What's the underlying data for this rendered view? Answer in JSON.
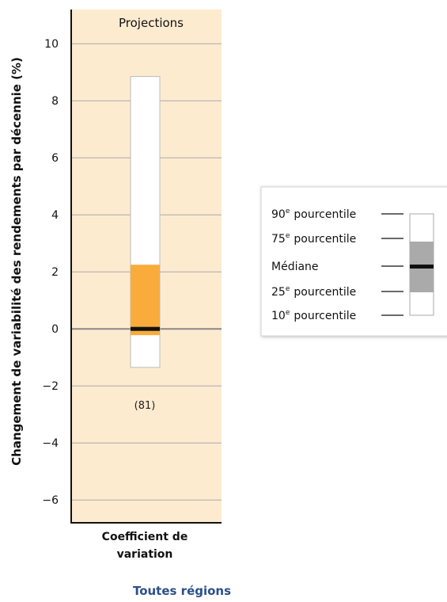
{
  "chart_data": {
    "type": "box",
    "panel_title": "Projections",
    "ylabel": "Changement de variabilité des rendements par décennie (%)",
    "ylim": [
      -6.8,
      11.2
    ],
    "yticks": [
      10,
      8,
      6,
      4,
      2,
      0,
      -2,
      -4,
      -6
    ],
    "ytick_labels": [
      "10",
      "8",
      "6",
      "4",
      "2",
      "0",
      "−2",
      "−4",
      "−6"
    ],
    "categories": [
      {
        "label_lines": [
          "Coefficient de",
          "variation"
        ],
        "count_label": "(81)",
        "p10": -1.35,
        "p25": -0.22,
        "median": 0.0,
        "p75": 2.25,
        "p90": 8.85
      }
    ],
    "zero_line": 0,
    "colors": {
      "panel_background": "#fdebd0",
      "box_fill": "#f9ac3b",
      "whisker_fill": "#ffffff",
      "median": "#111111",
      "gridline": "#aaaaaa",
      "legend_box": "#aaaaaa",
      "region_label": "#2b4f8a"
    },
    "region_label": "Toutes régions",
    "legend": {
      "items": [
        {
          "num": "90",
          "sup": "e",
          "text": "pourcentile"
        },
        {
          "num": "75",
          "sup": "e",
          "text": "pourcentile"
        },
        {
          "num": "",
          "sup": "",
          "text": "Médiane"
        },
        {
          "num": "25",
          "sup": "e",
          "text": "pourcentile"
        },
        {
          "num": "10",
          "sup": "e",
          "text": "pourcentile"
        }
      ]
    }
  }
}
